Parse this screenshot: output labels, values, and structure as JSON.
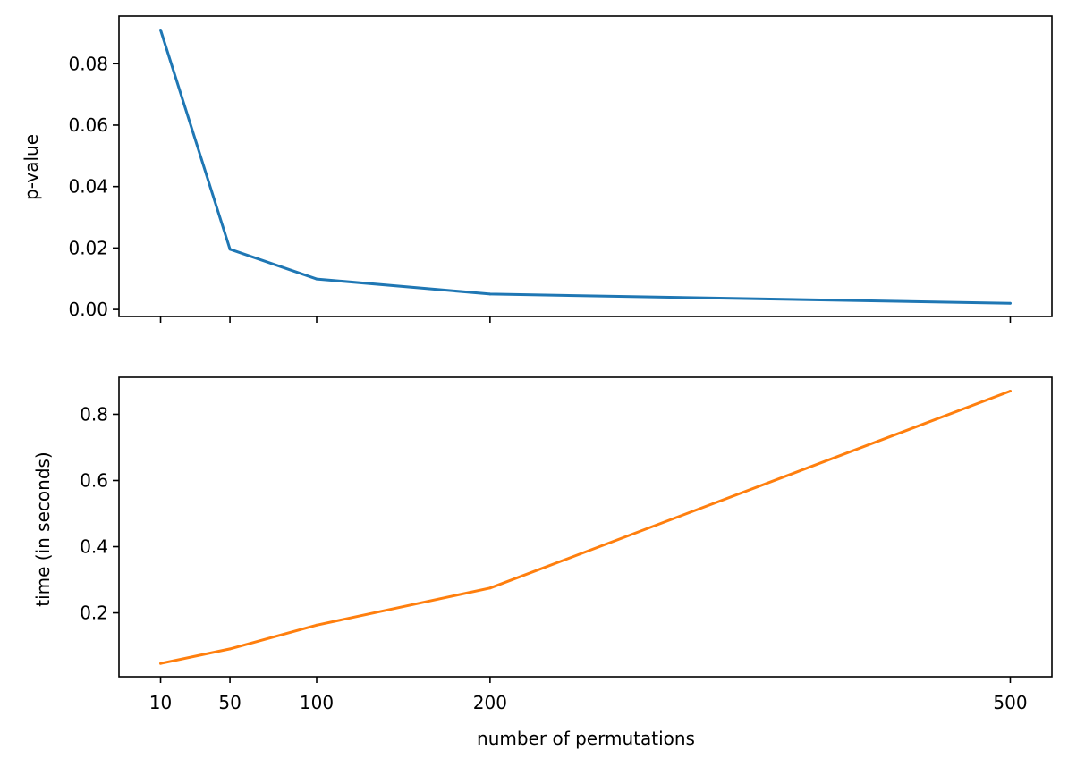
{
  "chart_data": [
    {
      "type": "line",
      "title": "",
      "xlabel": "",
      "ylabel": "p-value",
      "x": [
        10,
        50,
        100,
        200,
        500
      ],
      "xticks": [
        10,
        50,
        100,
        200,
        500
      ],
      "show_xtick_labels": false,
      "yticks": [
        "0.00",
        "0.02",
        "0.04",
        "0.06",
        "0.08"
      ],
      "ylim": [
        -0.0023,
        0.0955
      ],
      "series": [
        {
          "color": "#1f77b4",
          "values": [
            0.091,
            0.0196,
            0.0099,
            0.005,
            0.002
          ]
        }
      ],
      "grid": false
    },
    {
      "type": "line",
      "title": "",
      "xlabel": "number of permutations",
      "ylabel": "time (in seconds)",
      "x": [
        10,
        50,
        100,
        200,
        500
      ],
      "xticks": [
        10,
        50,
        100,
        200,
        500
      ],
      "xtick_labels": [
        "10",
        "50",
        "100",
        "200",
        "500"
      ],
      "show_xtick_labels": true,
      "yticks": [
        "0.2",
        "0.4",
        "0.6",
        "0.8"
      ],
      "ylim": [
        0.007,
        0.912
      ],
      "series": [
        {
          "color": "#ff7f0e",
          "values": [
            0.047,
            0.091,
            0.163,
            0.275,
            0.87
          ]
        }
      ],
      "grid": false
    }
  ]
}
